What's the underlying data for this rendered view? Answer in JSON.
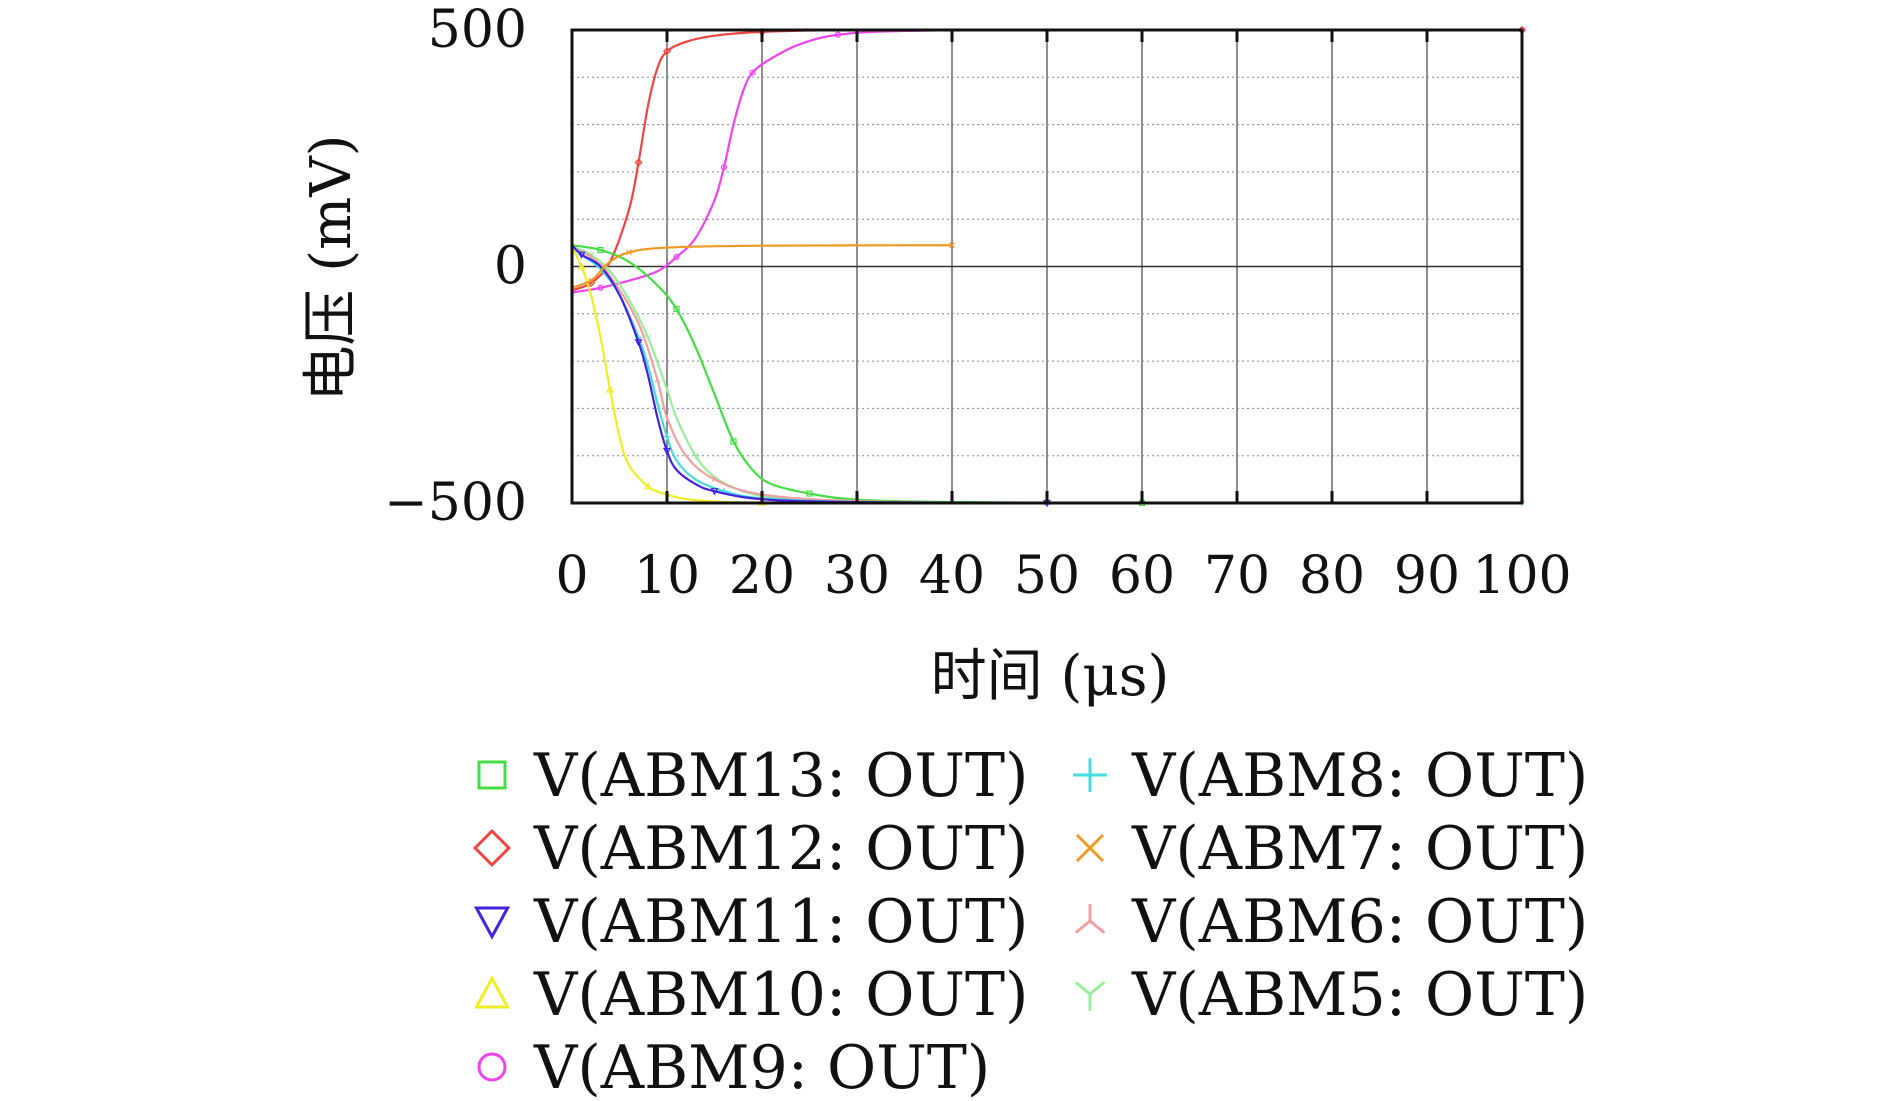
{
  "chart_data": {
    "type": "line",
    "xlabel": "时间 (μs)",
    "ylabel": "电压 (mV)",
    "xlim": [
      0,
      100
    ],
    "ylim": [
      -500,
      500
    ],
    "xticks": [
      "0",
      "10",
      "20",
      "30",
      "40",
      "50",
      "60",
      "70",
      "80",
      "90",
      "100"
    ],
    "yticks": [
      "500",
      "0",
      "−500"
    ],
    "grid": true,
    "legend_position": "bottom",
    "series": [
      {
        "name": "V(ABM13: OUT)",
        "color": "#44dd44",
        "marker": "square",
        "points": [
          [
            0,
            45
          ],
          [
            3,
            35
          ],
          [
            6,
            10
          ],
          [
            9,
            -40
          ],
          [
            11,
            -90
          ],
          [
            13,
            -170
          ],
          [
            15,
            -270
          ],
          [
            17,
            -370
          ],
          [
            19,
            -430
          ],
          [
            21,
            -460
          ],
          [
            25,
            -480
          ],
          [
            30,
            -493
          ],
          [
            40,
            -498
          ],
          [
            60,
            -500
          ],
          [
            80,
            -500
          ],
          [
            100,
            -500
          ]
        ]
      },
      {
        "name": "V(ABM12: OUT)",
        "color": "#ee4444",
        "marker": "diamond",
        "points": [
          [
            0,
            -50
          ],
          [
            2,
            -35
          ],
          [
            4,
            10
          ],
          [
            6,
            120
          ],
          [
            7,
            220
          ],
          [
            8,
            340
          ],
          [
            9,
            420
          ],
          [
            10,
            455
          ],
          [
            12,
            475
          ],
          [
            15,
            488
          ],
          [
            20,
            496
          ],
          [
            30,
            500
          ],
          [
            60,
            500
          ],
          [
            100,
            500
          ]
        ]
      },
      {
        "name": "V(ABM11: OUT)",
        "color": "#4422dd",
        "marker": "triangle-down",
        "points": [
          [
            0,
            45
          ],
          [
            1,
            25
          ],
          [
            3,
            0
          ],
          [
            5,
            -60
          ],
          [
            7,
            -160
          ],
          [
            8,
            -230
          ],
          [
            9,
            -320
          ],
          [
            10,
            -390
          ],
          [
            11,
            -430
          ],
          [
            13,
            -460
          ],
          [
            15,
            -475
          ],
          [
            20,
            -492
          ],
          [
            30,
            -498
          ],
          [
            50,
            -500
          ],
          [
            100,
            -500
          ]
        ]
      },
      {
        "name": "V(ABM10: OUT)",
        "color": "#eeee22",
        "marker": "triangle-up",
        "points": [
          [
            0,
            40
          ],
          [
            1,
            0
          ],
          [
            2,
            -60
          ],
          [
            3,
            -150
          ],
          [
            4,
            -260
          ],
          [
            5,
            -360
          ],
          [
            6,
            -420
          ],
          [
            8,
            -465
          ],
          [
            10,
            -482
          ],
          [
            13,
            -494
          ],
          [
            20,
            -499
          ],
          [
            40,
            -500
          ],
          [
            100,
            -500
          ]
        ]
      },
      {
        "name": "V(ABM9: OUT)",
        "color": "#ee44ee",
        "marker": "circle",
        "points": [
          [
            0,
            -55
          ],
          [
            3,
            -45
          ],
          [
            6,
            -30
          ],
          [
            9,
            -10
          ],
          [
            11,
            20
          ],
          [
            13,
            60
          ],
          [
            15,
            140
          ],
          [
            16,
            210
          ],
          [
            17,
            300
          ],
          [
            18,
            370
          ],
          [
            19,
            410
          ],
          [
            21,
            440
          ],
          [
            24,
            470
          ],
          [
            28,
            490
          ],
          [
            35,
            498
          ],
          [
            50,
            500
          ],
          [
            100,
            500
          ]
        ]
      },
      {
        "name": "V(ABM8: OUT)",
        "color": "#44dddd",
        "marker": "plus",
        "points": [
          [
            0,
            45
          ],
          [
            1,
            25
          ],
          [
            3,
            -5
          ],
          [
            5,
            -60
          ],
          [
            7,
            -150
          ],
          [
            8,
            -210
          ],
          [
            9,
            -290
          ],
          [
            10,
            -360
          ],
          [
            11,
            -410
          ],
          [
            13,
            -450
          ],
          [
            16,
            -475
          ],
          [
            20,
            -490
          ],
          [
            30,
            -498
          ],
          [
            50,
            -500
          ],
          [
            100,
            -500
          ]
        ]
      },
      {
        "name": "V(ABM7: OUT)",
        "color": "#ee9922",
        "marker": "x",
        "points": [
          [
            0,
            -45
          ],
          [
            2,
            -30
          ],
          [
            3,
            -10
          ],
          [
            4,
            10
          ],
          [
            6,
            30
          ],
          [
            10,
            40
          ],
          [
            20,
            44
          ],
          [
            40,
            45
          ]
        ]
      },
      {
        "name": "V(ABM6: OUT)",
        "color": "#f0a0a0",
        "marker": "tri-up",
        "points": [
          [
            0,
            40
          ],
          [
            2,
            20
          ],
          [
            4,
            -20
          ],
          [
            7,
            -120
          ],
          [
            9,
            -240
          ],
          [
            10,
            -320
          ],
          [
            12,
            -400
          ],
          [
            15,
            -450
          ],
          [
            20,
            -482
          ],
          [
            30,
            -496
          ],
          [
            50,
            -500
          ],
          [
            100,
            -500
          ]
        ]
      },
      {
        "name": "V(ABM5: OUT)",
        "color": "#99ee99",
        "marker": "tri-down",
        "points": [
          [
            0,
            42
          ],
          [
            2,
            25
          ],
          [
            4,
            -10
          ],
          [
            6,
            -70
          ],
          [
            8,
            -150
          ],
          [
            10,
            -260
          ],
          [
            11,
            -320
          ],
          [
            13,
            -400
          ],
          [
            15,
            -445
          ],
          [
            18,
            -475
          ],
          [
            22,
            -490
          ],
          [
            30,
            -498
          ],
          [
            50,
            -500
          ],
          [
            100,
            -500
          ]
        ]
      }
    ]
  }
}
